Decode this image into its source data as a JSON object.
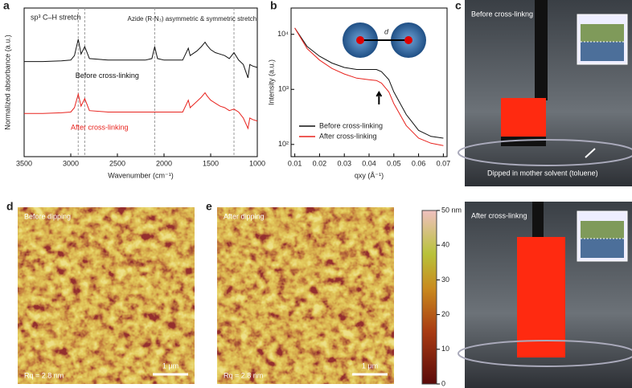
{
  "chart_data": [
    {
      "type": "line",
      "panel": "a",
      "xlabel": "Wavenumber (cm⁻¹)",
      "ylabel": "Normalized absorbance (a.u.)",
      "xlim": [
        3500,
        1000
      ],
      "xticks": [
        3500,
        3000,
        2500,
        2000,
        1500,
        1000
      ],
      "ylim": [
        0,
        10
      ],
      "x": [
        3500,
        3300,
        3100,
        3000,
        2960,
        2920,
        2890,
        2850,
        2800,
        2600,
        2400,
        2200,
        2130,
        2100,
        2070,
        2000,
        1800,
        1740,
        1720,
        1650,
        1600,
        1560,
        1540,
        1500,
        1450,
        1400,
        1350,
        1300,
        1250,
        1200,
        1150,
        1100,
        1080,
        1050,
        1000
      ],
      "series": [
        {
          "name": "Before cross-linking",
          "color": "#111111",
          "values": [
            6.4,
            6.4,
            6.45,
            6.5,
            6.8,
            7.9,
            6.9,
            7.4,
            6.6,
            6.5,
            6.5,
            6.5,
            6.6,
            7.4,
            6.6,
            6.5,
            6.5,
            7.3,
            6.8,
            7.1,
            7.4,
            7.7,
            7.5,
            7.2,
            7.0,
            6.9,
            6.8,
            6.6,
            7.0,
            6.5,
            6.2,
            5.3,
            6.2,
            6.1,
            6.0
          ]
        },
        {
          "name": "After cross-linking",
          "color": "#e8231e",
          "values": [
            2.9,
            2.9,
            2.95,
            3.0,
            3.3,
            4.2,
            3.4,
            3.9,
            3.1,
            3.0,
            3.0,
            3.0,
            3.0,
            3.0,
            3.0,
            3.0,
            3.0,
            3.8,
            3.3,
            3.7,
            4.0,
            4.3,
            4.1,
            3.8,
            3.6,
            3.4,
            3.3,
            3.1,
            3.2,
            3.0,
            2.6,
            1.9,
            2.6,
            2.5,
            2.4
          ]
        }
      ],
      "reference_lines": [
        2920,
        2850,
        2100,
        1250
      ],
      "annotations": [
        "sp³ C–H stretch",
        "Azide (R-N₃) asymmetric & symmetric stretch"
      ]
    },
    {
      "type": "line",
      "panel": "b",
      "xlabel": "qxy (Å⁻¹)",
      "ylabel": "Intensity (a.u.)",
      "log_y": true,
      "xlim": [
        0.0085,
        0.0715
      ],
      "xticks": [
        0.01,
        0.02,
        0.03,
        0.04,
        0.05,
        0.06,
        0.07
      ],
      "ylim": [
        60,
        30000
      ],
      "yticks": [
        {
          "value": 100,
          "label": "10²"
        },
        {
          "value": 1000,
          "label": "10³"
        },
        {
          "value": 10000,
          "label": "10⁴"
        }
      ],
      "x": [
        0.01,
        0.015,
        0.02,
        0.025,
        0.03,
        0.035,
        0.04,
        0.043,
        0.045,
        0.048,
        0.05,
        0.055,
        0.06,
        0.065,
        0.07
      ],
      "series": [
        {
          "name": "Before cross-linking",
          "color": "#111111",
          "values": [
            13000,
            6000,
            4000,
            3000,
            2500,
            2300,
            2300,
            2300,
            2100,
            1500,
            900,
            350,
            180,
            140,
            130
          ]
        },
        {
          "name": "After cross-linking",
          "color": "#e8231e",
          "values": [
            13000,
            5500,
            3400,
            2400,
            1900,
            1600,
            1500,
            1450,
            1300,
            900,
            550,
            220,
            130,
            105,
            95
          ]
        }
      ],
      "legend": "lower-left",
      "inset_label": "d"
    }
  ],
  "photos": {
    "panel": "c",
    "top": "Before cross-linkng",
    "note": "Dipped in mother solvent (toluene)",
    "bottom": "After cross-linkng"
  },
  "afm": [
    {
      "panel": "d",
      "label": "Before dipping",
      "rq": "Rq = 2.8 nm",
      "scale": "1 μm"
    },
    {
      "panel": "e",
      "label": "After dipping",
      "rq": "Rq = 2.8 nm",
      "scale": "1 μm"
    }
  ],
  "colorbar": {
    "lim": [
      0,
      50
    ],
    "ticks": [
      0,
      10,
      20,
      30,
      40,
      {
        "value": 50,
        "label": "50 nm"
      }
    ]
  }
}
